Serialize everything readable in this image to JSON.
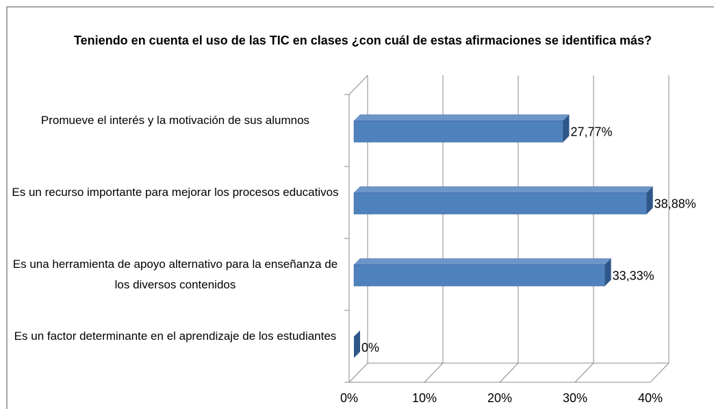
{
  "chart_data": {
    "type": "bar3d_horizontal",
    "title": "Teniendo en cuenta el uso de las TIC en clases ¿con cuál de estas afirmaciones se identifica más?",
    "categories": [
      "Promueve el interés y la motivación de sus alumnos",
      "Es un recurso importante para mejorar los procesos educativos",
      "Es una herramienta de apoyo alternativo para la enseñanza de los diversos contenidos",
      "Es un factor determinante en el aprendizaje de los estudiantes"
    ],
    "values": [
      27.77,
      38.88,
      33.33,
      0
    ],
    "value_labels": [
      "27,77%",
      "38,88%",
      "33,33%",
      "0%"
    ],
    "color": "#4f81bd",
    "xlim": [
      0,
      40
    ],
    "xticks": [
      {
        "value": 0,
        "label": "0%"
      },
      {
        "value": 10,
        "label": "10%"
      },
      {
        "value": 20,
        "label": "20%"
      },
      {
        "value": 30,
        "label": "30%"
      },
      {
        "value": 40,
        "label": "40%"
      }
    ],
    "grid": true
  }
}
